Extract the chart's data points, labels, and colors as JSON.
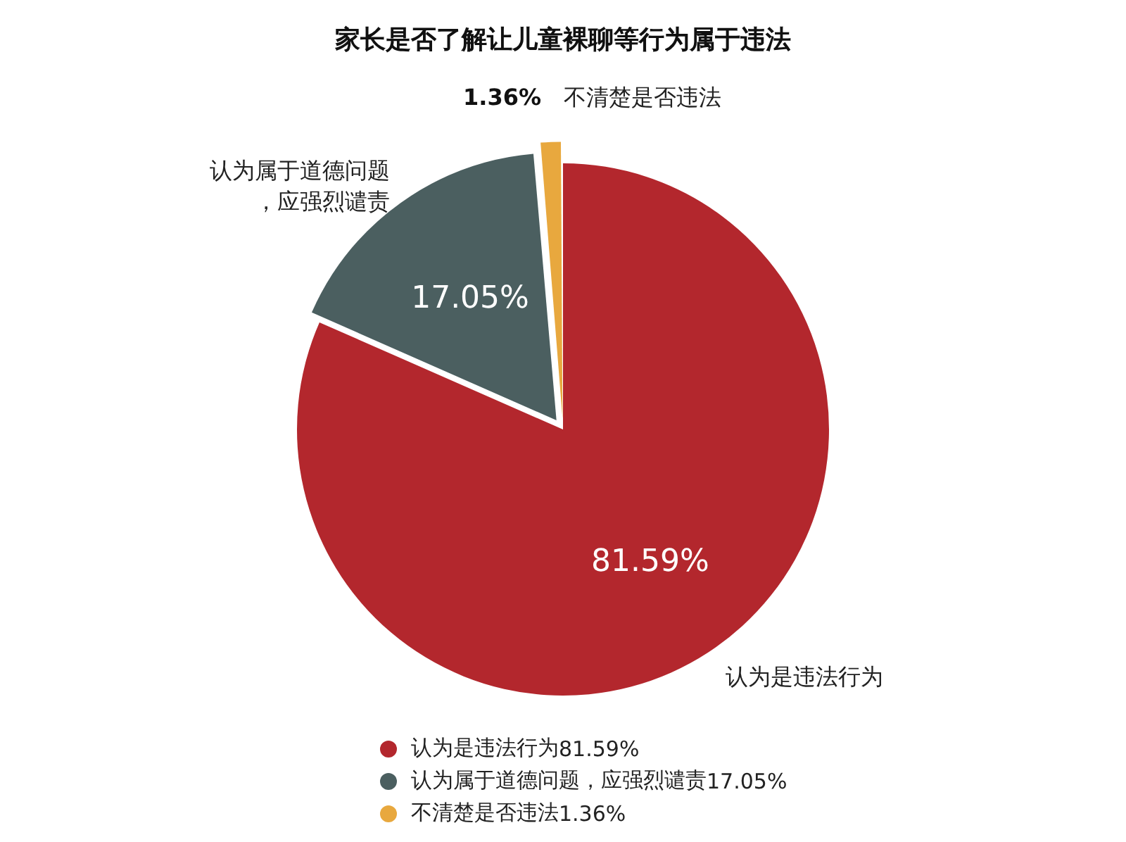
{
  "chart_data": {
    "type": "pie",
    "title": "家长是否了解让儿童裸聊等行为属于违法",
    "categories": [
      "认为是违法行为",
      "认为属于道德问题，应强烈谴责",
      "不清楚是否违法"
    ],
    "values": [
      81.59,
      17.05,
      1.36
    ],
    "value_labels": [
      "81.59%",
      "17.05%",
      "1.36%"
    ],
    "colors": [
      "#b3272d",
      "#4b5f60",
      "#e8a83e"
    ],
    "legend": "bottom"
  }
}
